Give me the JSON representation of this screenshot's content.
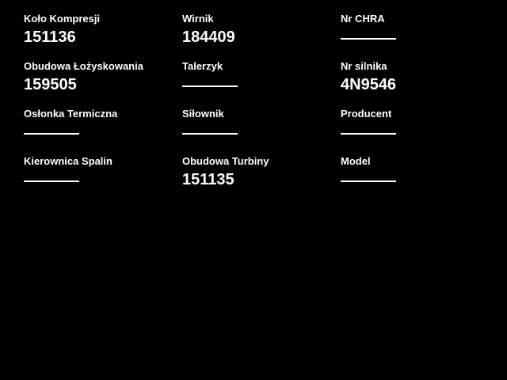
{
  "page": {
    "background_color": "#000000",
    "text_color": "#ffffff",
    "empty_value_indicator": "horizontal-dash-line"
  },
  "fields": [
    {
      "label": "Koło Kompresji",
      "value": "151136"
    },
    {
      "label": "Wirnik",
      "value": "184409"
    },
    {
      "label": "Nr CHRA",
      "value": ""
    },
    {
      "label": "Obudowa Łożyskowania",
      "value": "159505"
    },
    {
      "label": "Talerzyk",
      "value": ""
    },
    {
      "label": "Nr silnika",
      "value": "4N9546"
    },
    {
      "label": "Osłonka Termiczna",
      "value": ""
    },
    {
      "label": "Siłownik",
      "value": ""
    },
    {
      "label": "Producent",
      "value": ""
    },
    {
      "label": "Kierownica Spalin",
      "value": ""
    },
    {
      "label": "Obudowa Turbiny",
      "value": "151135"
    },
    {
      "label": "Model",
      "value": ""
    }
  ]
}
